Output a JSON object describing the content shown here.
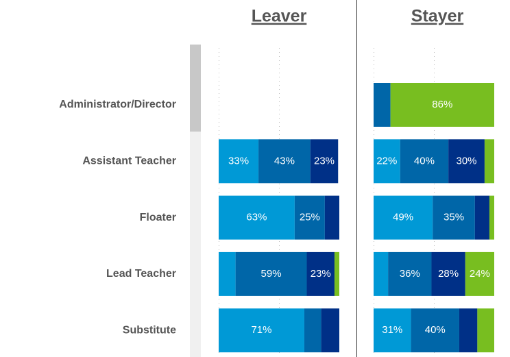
{
  "chart_data": {
    "type": "bar",
    "orientation": "horizontal",
    "stacked": true,
    "categories": [
      "Administrator/Director",
      "Assistant Teacher",
      "Floater",
      "Lead Teacher",
      "Substitute"
    ],
    "xlim": [
      0,
      100
    ],
    "xticks": [
      0,
      50
    ],
    "grid": true,
    "panels": [
      {
        "title": "Leaver",
        "series": [
          {
            "color": "#0099d6",
            "values": [
              null,
              33,
              63,
              14,
              71
            ],
            "value_labels": [
              null,
              "33%",
              "63%",
              null,
              "71%"
            ]
          },
          {
            "color": "#0066a8",
            "values": [
              null,
              43,
              25,
              59,
              14
            ],
            "value_labels": [
              null,
              "43%",
              "25%",
              "59%",
              null
            ]
          },
          {
            "color": "#003087",
            "values": [
              null,
              23,
              12,
              23,
              15
            ],
            "value_labels": [
              null,
              "23%",
              null,
              "23%",
              null
            ]
          },
          {
            "color": "#78be20",
            "values": [
              null,
              0,
              0,
              4,
              0
            ],
            "value_labels": [
              null,
              null,
              null,
              null,
              null
            ]
          }
        ]
      },
      {
        "title": "Stayer",
        "series": [
          {
            "color": "#0099d6",
            "values": [
              0,
              22,
              49,
              12,
              31
            ],
            "value_labels": [
              null,
              "22%",
              "49%",
              null,
              "31%"
            ]
          },
          {
            "color": "#0066a8",
            "values": [
              14,
              40,
              35,
              36,
              40
            ],
            "value_labels": [
              null,
              "40%",
              "35%",
              "36%",
              "40%"
            ]
          },
          {
            "color": "#003087",
            "values": [
              0,
              30,
              12,
              28,
              15
            ],
            "value_labels": [
              null,
              "30%",
              null,
              "28%",
              null
            ]
          },
          {
            "color": "#78be20",
            "values": [
              86,
              8,
              4,
              24,
              14
            ],
            "value_labels": [
              "86%",
              null,
              null,
              "24%",
              null
            ]
          }
        ]
      }
    ]
  }
}
